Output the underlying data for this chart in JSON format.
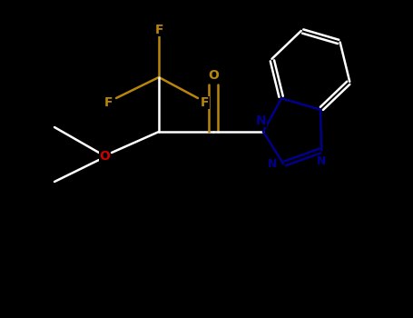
{
  "background_color": "#000000",
  "bond_color": "#ffffff",
  "F_color": "#b8860b",
  "O_color": "#cc0000",
  "carbonyl_O_color": "#b8860b",
  "N_color": "#00008b",
  "line_width": 1.8,
  "font_size": 10,
  "figsize": [
    4.55,
    3.5
  ],
  "dpi": 100,
  "xlim": [
    0,
    4.55
  ],
  "ylim": [
    0,
    3.5
  ]
}
